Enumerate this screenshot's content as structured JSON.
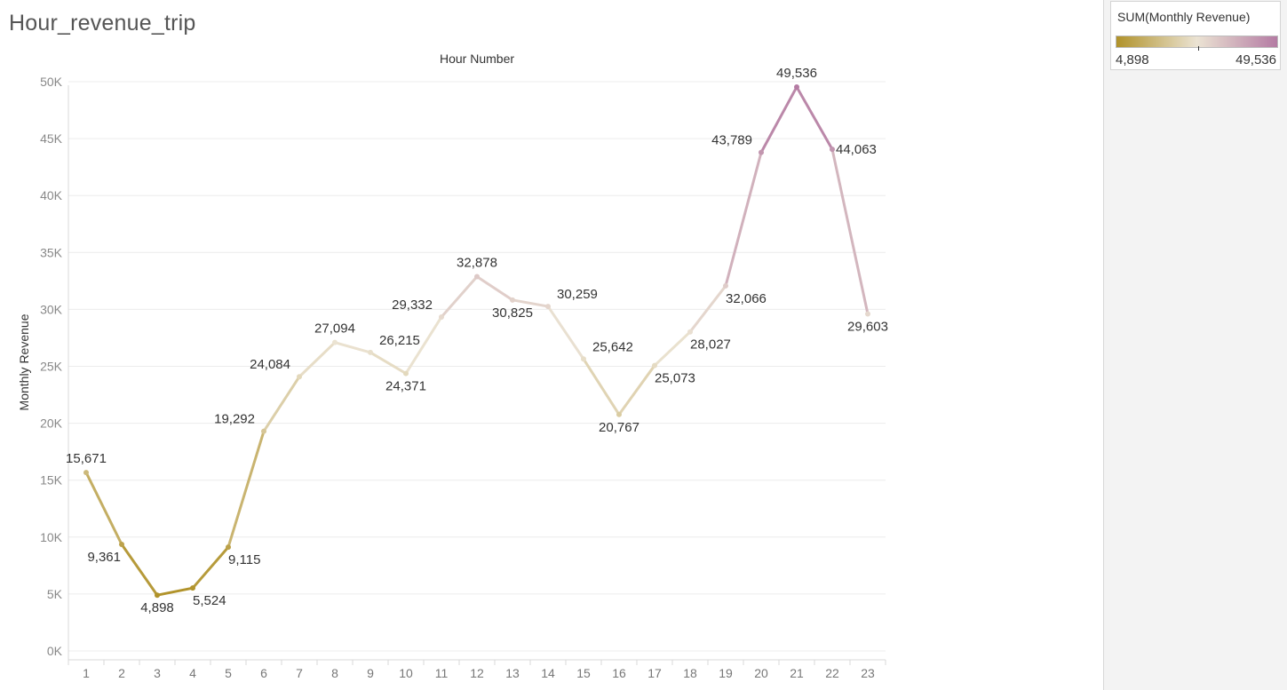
{
  "sheet_title": "Hour_revenue_trip",
  "legend": {
    "title": "SUM(Monthly Revenue)",
    "min_label": "4,898",
    "max_label": "49,536",
    "color_low": "#b09229",
    "color_mid": "#ebe3d3",
    "color_high": "#b47ba3"
  },
  "chart_data": {
    "type": "line",
    "title": "Hour Number",
    "xlabel": "",
    "ylabel": "Monthly Revenue",
    "ylim": [
      0,
      50000
    ],
    "y_ticks": [
      0,
      5000,
      10000,
      15000,
      20000,
      25000,
      30000,
      35000,
      40000,
      45000,
      50000
    ],
    "y_tick_labels": [
      "0K",
      "5K",
      "10K",
      "15K",
      "20K",
      "25K",
      "30K",
      "35K",
      "40K",
      "45K",
      "50K"
    ],
    "x": [
      1,
      2,
      3,
      4,
      5,
      6,
      7,
      8,
      9,
      10,
      11,
      12,
      13,
      14,
      15,
      16,
      17,
      18,
      19,
      20,
      21,
      22,
      23
    ],
    "series": [
      {
        "values": [
          15671,
          9361,
          4898,
          5524,
          9115,
          19292,
          24084,
          27094,
          26215,
          24371,
          29332,
          32878,
          30825,
          30259,
          25642,
          20767,
          25073,
          28027,
          32066,
          43789,
          49536,
          44063,
          29603
        ],
        "data_labels": [
          "15,671",
          "9,361",
          "4,898",
          "5,524",
          "9,115",
          "19,292",
          "24,084",
          "27,094",
          "26,215",
          "24,371",
          "29,332",
          "32,878",
          "30,825",
          "30,259",
          "25,642",
          "20,767",
          "25,073",
          "28,027",
          "32,066",
          "43,789",
          "49,536",
          "44,063",
          "29,603"
        ],
        "label_positions": [
          "above",
          "below-left",
          "below",
          "below-right",
          "below-right",
          "above-left",
          "above-left",
          "above",
          "above-right",
          "below",
          "above-left",
          "above",
          "below",
          "above-right",
          "above-right",
          "below",
          "below-right",
          "below-right",
          "below-right",
          "above-left",
          "above",
          "right",
          "below"
        ]
      }
    ],
    "color_scale": {
      "min": 4898,
      "max": 49536
    },
    "grid": true,
    "legend_position": "top-right"
  }
}
